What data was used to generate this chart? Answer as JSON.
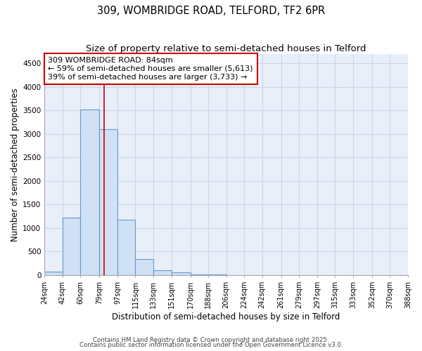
{
  "title1": "309, WOMBRIDGE ROAD, TELFORD, TF2 6PR",
  "title2": "Size of property relative to semi-detached houses in Telford",
  "xlabel": "Distribution of semi-detached houses by size in Telford",
  "ylabel": "Number of semi-detached properties",
  "bins": [
    24,
    42,
    60,
    79,
    97,
    115,
    133,
    151,
    170,
    188,
    206,
    224,
    242,
    261,
    279,
    297,
    315,
    333,
    352,
    370,
    388
  ],
  "counts": [
    75,
    1220,
    3520,
    3100,
    1170,
    340,
    100,
    60,
    20,
    10,
    5,
    2,
    2,
    1,
    1,
    1,
    1,
    1,
    1,
    1
  ],
  "bar_color": "#d0e0f5",
  "bar_edge_color": "#6699cc",
  "bar_linewidth": 0.8,
  "vline_x": 84,
  "vline_color": "#cc0000",
  "vline_linewidth": 1.2,
  "annotation_title": "309 WOMBRIDGE ROAD: 84sqm",
  "annotation_line1": "← 59% of semi-detached houses are smaller (5,613)",
  "annotation_line2": "39% of semi-detached houses are larger (3,733) →",
  "annotation_box_color": "white",
  "annotation_box_edge": "#cc0000",
  "ylim": [
    0,
    4700
  ],
  "yticks": [
    0,
    500,
    1000,
    1500,
    2000,
    2500,
    3000,
    3500,
    4000,
    4500
  ],
  "bg_color": "#e8eff9",
  "grid_color": "#c8d8ed",
  "footer1": "Contains HM Land Registry data © Crown copyright and database right 2025.",
  "footer2": "Contains public sector information licensed under the Open Government Licence v3.0.",
  "title_fontsize": 10.5,
  "subtitle_fontsize": 9.5,
  "tick_label_fontsize": 7,
  "axis_label_fontsize": 8.5,
  "annotation_fontsize": 8
}
